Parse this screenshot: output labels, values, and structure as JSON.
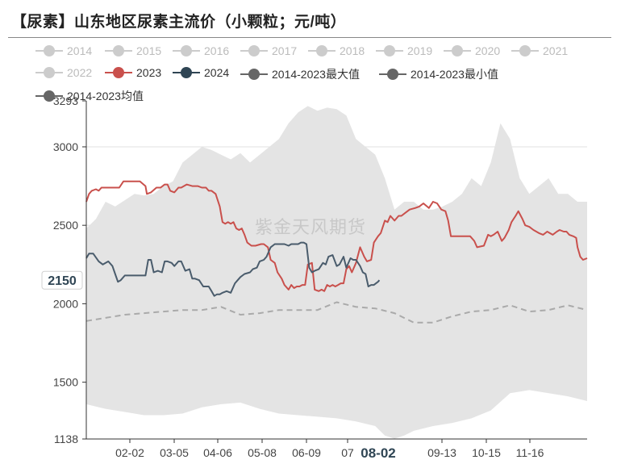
{
  "title": "【尿素】山东地区尿素主流价（小颗粒；元/吨）",
  "watermark": "紫金天风期货",
  "colors": {
    "range_fill": "#e4e4e4",
    "y2023": "#c9504c",
    "y2024": "#4a5c6c",
    "avg": "#aaaaaa",
    "inactive": "#cccccc",
    "legend_dark": "#666666"
  },
  "legend": [
    {
      "label": "2014",
      "active": false
    },
    {
      "label": "2015",
      "active": false
    },
    {
      "label": "2016",
      "active": false
    },
    {
      "label": "2017",
      "active": false
    },
    {
      "label": "2018",
      "active": false
    },
    {
      "label": "2019",
      "active": false
    },
    {
      "label": "2020",
      "active": false
    },
    {
      "label": "2021",
      "active": false
    },
    {
      "label": "2022",
      "active": false
    },
    {
      "label": "2023",
      "active": true,
      "color": "#c9504c"
    },
    {
      "label": "2024",
      "active": true,
      "color": "#2f4554"
    },
    {
      "label": "2014-2023最大值",
      "active": true,
      "color": "#666666"
    },
    {
      "label": "2014-2023最小值",
      "active": true,
      "color": "#666666"
    },
    {
      "label": "2014-2023均值",
      "active": true,
      "color": "#666666"
    }
  ],
  "chart_data": {
    "type": "line",
    "title": "【尿素】山东地区尿素主流价（小颗粒；元/吨）",
    "ylim": [
      1138,
      3293
    ],
    "y_ticks": [
      "3293",
      "3000",
      "2500",
      "2000",
      "1500",
      "1138"
    ],
    "x_ticks": [
      "02-02",
      "03-05",
      "04-06",
      "05-08",
      "06-09",
      "07",
      "08-02",
      "09-13",
      "10-15",
      "11-16"
    ],
    "x_range_days": [
      1,
      365
    ],
    "y_pointer_label": "2150",
    "x_pointer_label": "08-02",
    "series": [
      {
        "name": "2014-2023最大值",
        "x": [
          1,
          8,
          15,
          22,
          29,
          36,
          43,
          50,
          57,
          64,
          71,
          78,
          85,
          92,
          99,
          106,
          113,
          120,
          127,
          134,
          141,
          148,
          155,
          162,
          169,
          176,
          183,
          190,
          197,
          204,
          211,
          218,
          225,
          232,
          239,
          246,
          253,
          260,
          267,
          274,
          281,
          288,
          295,
          302,
          309,
          316,
          323,
          330,
          337,
          344,
          351,
          358,
          365
        ],
        "values": [
          2480,
          2540,
          2650,
          2620,
          2660,
          2700,
          2690,
          2700,
          2750,
          2780,
          2900,
          2950,
          3000,
          2980,
          2950,
          2920,
          2960,
          2900,
          2950,
          3000,
          3050,
          3150,
          3220,
          3260,
          3230,
          3250,
          3240,
          3200,
          3050,
          3000,
          2950,
          2800,
          2600,
          2650,
          2650,
          2600,
          2600,
          2620,
          2650,
          2700,
          2800,
          2750,
          2900,
          3150,
          3050,
          2800,
          2700,
          2750,
          2800,
          2700,
          2700,
          2650,
          2650
        ]
      },
      {
        "name": "2014-2023最小值",
        "x": [
          1,
          15,
          29,
          43,
          57,
          71,
          85,
          99,
          113,
          127,
          141,
          155,
          169,
          183,
          197,
          211,
          218,
          225,
          232,
          239,
          253,
          267,
          281,
          295,
          309,
          323,
          337,
          351,
          365
        ],
        "values": [
          1360,
          1330,
          1310,
          1290,
          1290,
          1300,
          1340,
          1360,
          1370,
          1330,
          1300,
          1290,
          1280,
          1270,
          1250,
          1220,
          1160,
          1140,
          1160,
          1190,
          1220,
          1240,
          1270,
          1320,
          1430,
          1450,
          1430,
          1410,
          1380
        ]
      },
      {
        "name": "2014-2023均值",
        "x": [
          1,
          15,
          29,
          43,
          57,
          71,
          85,
          99,
          113,
          127,
          141,
          155,
          169,
          183,
          197,
          211,
          225,
          239,
          253,
          267,
          281,
          295,
          309,
          323,
          337,
          351,
          365
        ],
        "values": [
          1890,
          1910,
          1930,
          1940,
          1950,
          1960,
          1960,
          1980,
          1930,
          1940,
          1960,
          1960,
          1960,
          2010,
          1980,
          1970,
          1940,
          1880,
          1880,
          1920,
          1950,
          1960,
          1990,
          1950,
          1960,
          1990,
          1960
        ]
      },
      {
        "name": "2023",
        "x": [
          1,
          3,
          5,
          8,
          10,
          12,
          15,
          20,
          25,
          28,
          31,
          35,
          40,
          44,
          45,
          48,
          52,
          55,
          58,
          60,
          62,
          65,
          68,
          70,
          74,
          78,
          82,
          85,
          88,
          90,
          92,
          95,
          98,
          100,
          102,
          104,
          106,
          108,
          110,
          112,
          114,
          116,
          118,
          121,
          124,
          128,
          130,
          133,
          135,
          138,
          140,
          143,
          145,
          148,
          150,
          152,
          154,
          156,
          158,
          160,
          162,
          165,
          167,
          170,
          172,
          174,
          176,
          178,
          180,
          182,
          184,
          186,
          188,
          190,
          192,
          194,
          197,
          200,
          203,
          205,
          208,
          210,
          213,
          215,
          218,
          220,
          222,
          225,
          228,
          230,
          233,
          236,
          240,
          243,
          246,
          250,
          253,
          256,
          259,
          262,
          264,
          266,
          270,
          275,
          280,
          283,
          285,
          290,
          293,
          295,
          297,
          300,
          303,
          305,
          308,
          310,
          313,
          315,
          318,
          320,
          323,
          326,
          330,
          333,
          336,
          340,
          343,
          345,
          348,
          350,
          352,
          355,
          357,
          358,
          360,
          362,
          365
        ],
        "values": [
          2650,
          2700,
          2720,
          2730,
          2720,
          2740,
          2740,
          2740,
          2740,
          2780,
          2780,
          2780,
          2780,
          2750,
          2700,
          2710,
          2740,
          2740,
          2760,
          2760,
          2720,
          2710,
          2740,
          2740,
          2760,
          2750,
          2750,
          2740,
          2740,
          2720,
          2720,
          2700,
          2620,
          2520,
          2510,
          2520,
          2510,
          2520,
          2480,
          2470,
          2480,
          2440,
          2390,
          2370,
          2370,
          2380,
          2380,
          2360,
          2280,
          2260,
          2200,
          2160,
          2120,
          2090,
          2120,
          2100,
          2110,
          2110,
          2120,
          2120,
          2250,
          2260,
          2090,
          2080,
          2090,
          2080,
          2120,
          2110,
          2120,
          2110,
          2120,
          2130,
          2130,
          2220,
          2240,
          2200,
          2260,
          2360,
          2300,
          2270,
          2280,
          2390,
          2430,
          2450,
          2530,
          2520,
          2560,
          2530,
          2560,
          2560,
          2580,
          2600,
          2610,
          2620,
          2640,
          2610,
          2650,
          2640,
          2600,
          2590,
          2530,
          2430,
          2430,
          2430,
          2430,
          2400,
          2360,
          2370,
          2440,
          2430,
          2440,
          2460,
          2400,
          2420,
          2470,
          2520,
          2560,
          2590,
          2540,
          2500,
          2490,
          2470,
          2450,
          2440,
          2460,
          2440,
          2460,
          2470,
          2460,
          2460,
          2440,
          2430,
          2420,
          2360,
          2300,
          2280,
          2290
        ]
      },
      {
        "name": "2024",
        "x": [
          1,
          3,
          6,
          10,
          13,
          17,
          20,
          22,
          24,
          26,
          29,
          33,
          36,
          40,
          44,
          46,
          48,
          50,
          53,
          56,
          58,
          60,
          63,
          65,
          68,
          70,
          73,
          76,
          78,
          80,
          83,
          86,
          90,
          92,
          94,
          96,
          98,
          100,
          103,
          106,
          109,
          111,
          113,
          116,
          120,
          122,
          125,
          127,
          130,
          132,
          135,
          138,
          141,
          145,
          148,
          150,
          152,
          155,
          157,
          159,
          161,
          163,
          165,
          167,
          170,
          173,
          175,
          177,
          180,
          183,
          185,
          188,
          190,
          193,
          195,
          197,
          200,
          202,
          204,
          206,
          208,
          210,
          213,
          214
        ],
        "values": [
          2290,
          2320,
          2320,
          2270,
          2250,
          2270,
          2240,
          2190,
          2140,
          2150,
          2180,
          2180,
          2180,
          2180,
          2180,
          2280,
          2280,
          2200,
          2210,
          2200,
          2270,
          2270,
          2260,
          2240,
          2270,
          2270,
          2210,
          2220,
          2160,
          2160,
          2150,
          2110,
          2110,
          2080,
          2050,
          2060,
          2060,
          2070,
          2080,
          2070,
          2130,
          2150,
          2170,
          2190,
          2200,
          2220,
          2230,
          2270,
          2280,
          2300,
          2360,
          2380,
          2380,
          2380,
          2370,
          2380,
          2380,
          2380,
          2390,
          2390,
          2380,
          2230,
          2200,
          2210,
          2220,
          2260,
          2250,
          2300,
          2310,
          2240,
          2250,
          2300,
          2230,
          2290,
          2280,
          2280,
          2240,
          2200,
          2190,
          2110,
          2120,
          2120,
          2140,
          2150
        ]
      }
    ]
  }
}
